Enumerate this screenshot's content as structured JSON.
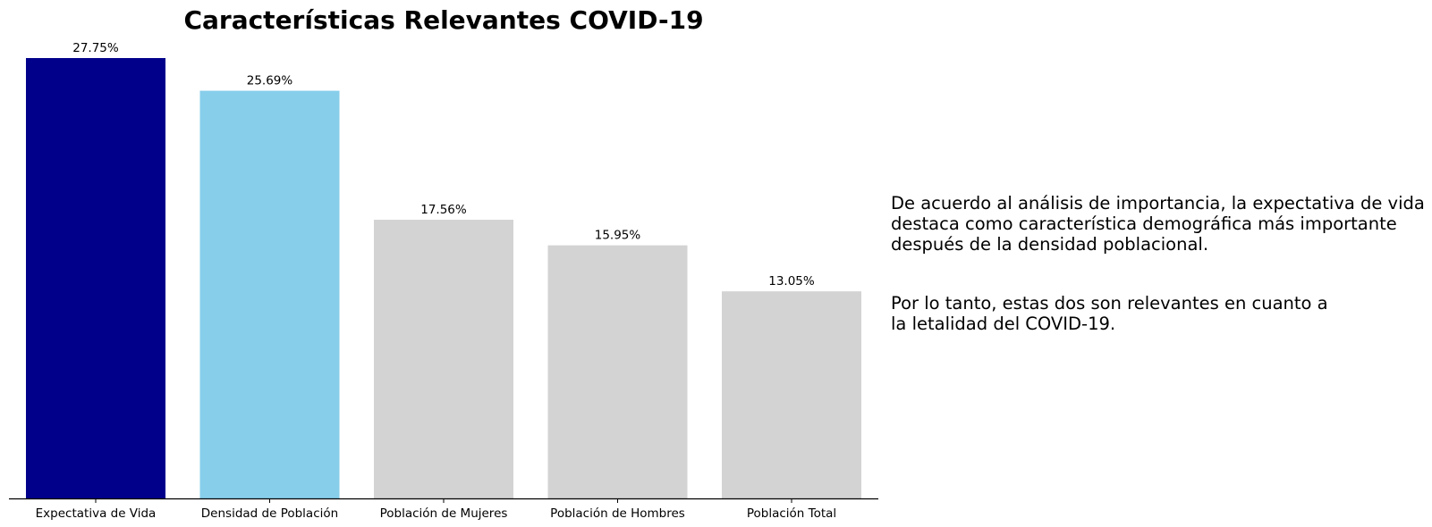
{
  "chart_data": {
    "type": "bar",
    "title": "Características Relevantes COVID-19",
    "xlabel": "",
    "ylabel": "",
    "categories": [
      "Expectativa de Vida",
      "Densidad de Población",
      "Población de Mujeres",
      "Población de Hombres",
      "Población Total"
    ],
    "values": [
      27.75,
      25.69,
      17.56,
      15.95,
      13.05
    ],
    "value_labels": [
      "27.75%",
      "25.69%",
      "17.56%",
      "15.95%",
      "13.05%"
    ],
    "colors": [
      "#00008b",
      "#87ceeb",
      "#d3d3d3",
      "#d3d3d3",
      "#d3d3d3"
    ],
    "ylim": [
      0,
      27.75
    ],
    "y_axis_visible": false,
    "grid": false,
    "legend": "none"
  },
  "annotations": [
    "De acuerdo al análisis de importancia, la expectativa de vida\ndestaca como característica demográfica más importante\ndespués de la densidad poblacional.",
    "Por lo tanto, estas dos son relevantes en cuanto a\nla letalidad del COVID-19."
  ]
}
